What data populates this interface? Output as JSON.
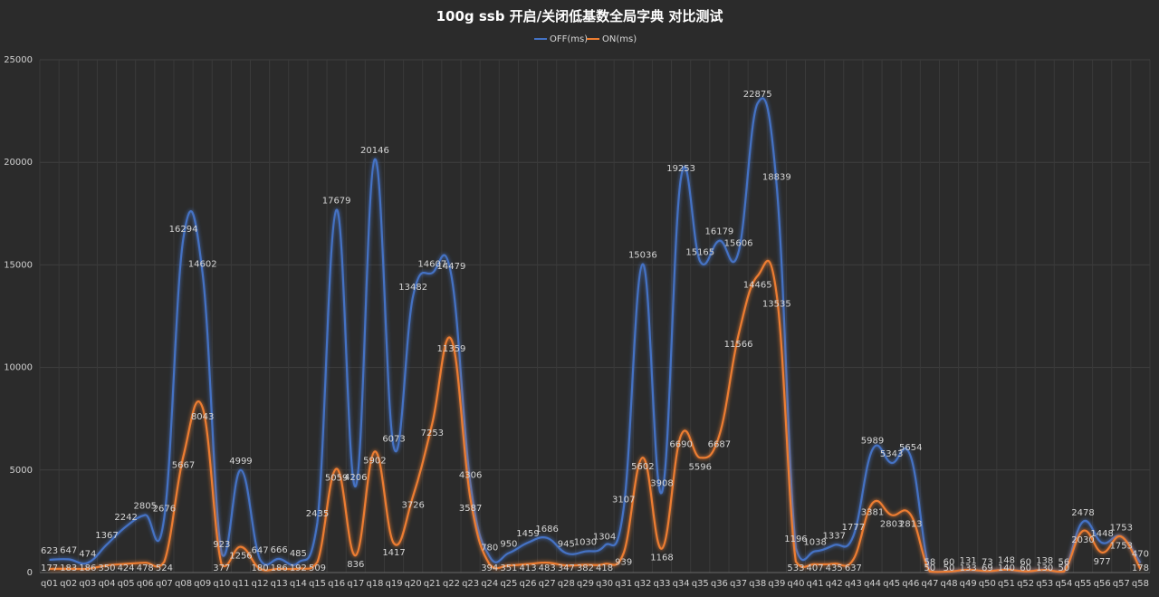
{
  "chart_data": {
    "type": "line",
    "title": "100g ssb 开启/关闭低基数全局字典 对比测试",
    "xlabel": "",
    "ylabel": "",
    "ylim": [
      0,
      25000
    ],
    "yticks": [
      0,
      5000,
      10000,
      15000,
      20000,
      25000
    ],
    "grid": true,
    "legend_position": "top",
    "categories": [
      "q01",
      "q02",
      "q03",
      "q04",
      "q05",
      "q06",
      "q07",
      "q08",
      "q09",
      "q10",
      "q11",
      "q12",
      "q13",
      "q14",
      "q15",
      "q16",
      "q17",
      "q18",
      "q19",
      "q20",
      "q21",
      "q22",
      "q23",
      "q24",
      "q25",
      "q26",
      "q27",
      "q28",
      "q29",
      "q30",
      "q31",
      "q32",
      "q33",
      "q34",
      "q35",
      "q36",
      "q37",
      "q38",
      "q39",
      "q40",
      "q41",
      "q42",
      "q43",
      "q44",
      "q45",
      "q46",
      "q47",
      "q48",
      "q49",
      "q50",
      "q51",
      "q52",
      "q53",
      "q54",
      "q55",
      "q56",
      "q57",
      "q58"
    ],
    "series": [
      {
        "name": "OFF(ms)",
        "color": "#4472c4",
        "values": [
          623,
          647,
          474,
          1367,
          2242,
          2805,
          2676,
          16294,
          14602,
          923,
          4999,
          647,
          666,
          485,
          2435,
          17679,
          4206,
          20146,
          6073,
          13482,
          14607,
          14479,
          4306,
          780,
          950,
          1459,
          1686,
          945,
          1030,
          1304,
          3107,
          15036,
          3908,
          19253,
          15165,
          16179,
          15606,
          22875,
          18839,
          1196,
          1038,
          1337,
          1777,
          5989,
          5343,
          5654,
          58,
          60,
          131,
          73,
          148,
          60,
          138,
          56,
          2478,
          1448,
          1753,
          470
        ]
      },
      {
        "name": "ON(ms)",
        "color": "#ed7d31",
        "values": [
          177,
          183,
          186,
          350,
          424,
          478,
          524,
          5667,
          8043,
          377,
          1256,
          180,
          186,
          192,
          509,
          5059,
          836,
          5902,
          1417,
          3726,
          7253,
          11359,
          3587,
          394,
          351,
          413,
          483,
          347,
          382,
          418,
          939,
          5602,
          1168,
          6690,
          5596,
          6687,
          11566,
          14465,
          13535,
          533,
          407,
          435,
          637,
          3381,
          2803,
          2813,
          50,
          50,
          133,
          69,
          140,
          60,
          130,
          50,
          2030,
          977,
          1753,
          178
        ]
      }
    ]
  }
}
